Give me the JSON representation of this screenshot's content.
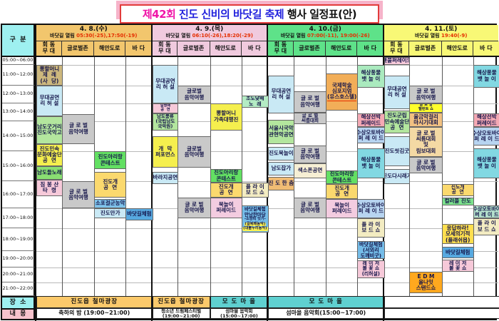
{
  "title": {
    "part1": "제42회",
    "part2": " 진도 신비의 바닷길 축제",
    "part3": " 행사 일정표(안)"
  },
  "labels": {
    "corner": "구  분",
    "place": "장  소",
    "content": "내  용",
    "tide": "바닷길 열림 "
  },
  "time_rows": [
    {
      "label": "05:00~06:00",
      "start": 5,
      "end": 6
    },
    {
      "label": "11:00~12:00",
      "start": 11,
      "end": 12
    },
    {
      "label": "12:00~13:00",
      "start": 12,
      "end": 13
    },
    {
      "label": "13:00~14:00",
      "start": 13,
      "end": 14
    },
    {
      "label": "14:00~15:00",
      "start": 14,
      "end": 15
    },
    {
      "label": "15:00~16:00",
      "start": 15,
      "end": 16
    },
    {
      "label": "16:00~17:00",
      "start": 16,
      "end": 17
    },
    {
      "label": "17:00~18:00",
      "start": 17,
      "end": 18
    },
    {
      "label": "18:00~19:00",
      "start": 18,
      "end": 19
    },
    {
      "label": "19:00~20:00",
      "start": 19,
      "end": 20
    },
    {
      "label": "20:00~21:00",
      "start": 20,
      "end": 21
    },
    {
      "label": "21:00~22:00",
      "start": 21,
      "end": 22
    }
  ],
  "columns": [
    [
      "회 동",
      "무 대"
    ],
    [
      "글로벌존"
    ],
    [
      "해안도로"
    ],
    [
      "바 다"
    ]
  ],
  "days": [
    {
      "date": "4. 8.(수)",
      "tide_times": "05:30(-25),17:50(-19)",
      "color": "#f2c66d",
      "events": [
        {
          "c": 0,
          "s": 11,
          "e": 12,
          "lines": [
            "뽕할머니",
            "제  례",
            "(사  당)"
          ],
          "bg": "#cdb87d"
        },
        {
          "c": 0,
          "s": 12,
          "e": 13.7,
          "lines": [
            "무대공연",
            "리 허 설"
          ],
          "bg": "#c9e9f5"
        },
        {
          "c": 0,
          "s": 13.7,
          "e": 14.75,
          "lines": [
            "남도굿거리",
            "(진도국악고)"
          ],
          "bg": "#b3e69e"
        },
        {
          "c": 0,
          "s": 14.75,
          "e": 15.5,
          "lines": [
            "진도민속",
            "문화예술단",
            "공  연"
          ],
          "bg": "#f5ef4e"
        },
        {
          "c": 0,
          "s": 15.5,
          "e": 15.95,
          "lines": [
            "남도들노래"
          ],
          "bg": "#8adf72"
        },
        {
          "c": 0,
          "s": 15.95,
          "e": 16.55,
          "lines": [
            "짐 봉 산",
            "타  령"
          ],
          "bg": "#f6c9d9"
        },
        {
          "c": 1,
          "s": 13.6,
          "e": 14.75,
          "lines": [
            "글 로 벌",
            "음악여행"
          ],
          "bg": "#c9c9c9"
        },
        {
          "c": 1,
          "s": 16,
          "e": 17,
          "lines": [
            "글 로 벌",
            "음악여행"
          ],
          "bg": "#c9c9c9"
        },
        {
          "c": 2,
          "s": 15,
          "e": 15.6,
          "lines": [
            "진도아리랑",
            "콘테스트"
          ],
          "bg": "#63e063"
        },
        {
          "c": 2,
          "s": 15.7,
          "e": 16.6,
          "lines": [
            "진도개",
            "공  연"
          ],
          "bg": "#fbd96e"
        },
        {
          "c": 2,
          "s": 16.65,
          "e": 17,
          "lines": [
            "소포걸군농악"
          ],
          "bg": "#7fc3ea"
        },
        {
          "c": 2,
          "s": 17,
          "e": 17.5,
          "lines": [
            "진도만가"
          ],
          "bg": "#c9e9f5"
        },
        {
          "c": 3,
          "s": 17,
          "e": 17.6,
          "lines": [
            "바닷길체험"
          ],
          "bg": "#57a9e0"
        }
      ]
    },
    {
      "date": "4. 9.(목)",
      "tide_times": "06:10(-26),18:20(-29)",
      "color": "#f0cade",
      "events": [
        {
          "c": 0,
          "s": 11,
          "e": 13,
          "lines": [
            "무대공연",
            "리 허 설"
          ],
          "bg": "#c9e9f5"
        },
        {
          "c": 0,
          "s": 13,
          "e": 13.55,
          "lines": [
            "걸쌍패",
            "공  연"
          ],
          "bg": "#f6c9d9"
        },
        {
          "c": 0,
          "s": 13.55,
          "e": 14.3,
          "lines": [
            "남도풍류",
            "(국립남도",
            "국악원)"
          ],
          "bg": "#b3e69e"
        },
        {
          "c": 0,
          "s": 14.5,
          "e": 15.55,
          "lines": [
            "개  막",
            "퍼포먼스"
          ],
          "bg": "#f5ef4e"
        },
        {
          "c": 0,
          "s": 15.7,
          "e": 16.1,
          "lines": [
            "바라지공연"
          ],
          "bg": "#c9e9f5"
        },
        {
          "c": 1,
          "s": 12,
          "e": 13,
          "lines": [
            "글로벌",
            "음악여행"
          ],
          "bg": "#c9c9c9"
        },
        {
          "c": 1,
          "s": 14.5,
          "e": 15.55,
          "lines": [
            "글로벌",
            "음악여행"
          ],
          "bg": "#c9c9c9"
        },
        {
          "c": 1,
          "s": 16.6,
          "e": 17.5,
          "lines": [
            "글 로 벌",
            "음악여행"
          ],
          "bg": "#c9c9c9"
        },
        {
          "c": 2,
          "s": 13,
          "e": 14.3,
          "lines": [
            "뽕할머니",
            "가족대행진"
          ],
          "bg": "#f5ef4e"
        },
        {
          "c": 2,
          "s": 15.6,
          "e": 16.05,
          "lines": [
            "진도아리랑",
            "콘테스트"
          ],
          "bg": "#63e063"
        },
        {
          "c": 2,
          "s": 16.05,
          "e": 16.6,
          "lines": [
            "진도개",
            "공  연"
          ],
          "bg": "#fbd96e"
        },
        {
          "c": 2,
          "s": 16.6,
          "e": 17.5,
          "lines": [
            "북놀이",
            "퍼레이드"
          ],
          "bg": "#f3cce0"
        },
        {
          "c": 3,
          "s": 12.55,
          "e": 13.25,
          "lines": [
            "조도닻배",
            "노  래"
          ],
          "bg": "#b4ecc4"
        },
        {
          "c": 3,
          "s": 16.05,
          "e": 16.6,
          "lines": [
            "플 라 이",
            "보 드 쇼"
          ],
          "bg": "#f3ecc2"
        },
        {
          "c": 3,
          "s": 16.9,
          "e": 18.2,
          "lines": [
            "바닷길체험",
            "만남한마당"
          ],
          "notes": [
            "-소망띠 잇기-"
          ],
          "tags": [
            "(걸북패농악)",
            "(대불누리농악)"
          ],
          "bg": "#74bce8"
        }
      ]
    },
    {
      "date": "4. 10.(금)",
      "tide_times": "07:00(-11), 19:00(-26)",
      "color": "#5ee289",
      "events": [
        {
          "c": 0,
          "s": 11.5,
          "e": 13.55,
          "lines": [
            "무대공연",
            "리 허 설"
          ],
          "bg": "#c9e9f5"
        },
        {
          "c": 0,
          "s": 13.9,
          "e": 14.75,
          "lines": [
            "서울시국악",
            "관현악공연"
          ],
          "bg": "#b3e69e"
        },
        {
          "c": 0,
          "s": 14.85,
          "e": 15.3,
          "lines": [
            "진도북놀이"
          ],
          "bg": "#c9e9f5"
        },
        {
          "c": 0,
          "s": 15.35,
          "e": 15.8,
          "lines": [
            "남도잡가"
          ],
          "bg": "#c9e9f5"
        },
        {
          "c": 0,
          "s": 15.85,
          "e": 16.35,
          "lines": [
            "진 도 한 춤"
          ],
          "bg": "#f0bc74"
        },
        {
          "c": 1,
          "s": 12.3,
          "e": 13.5,
          "lines": [
            "글 로 벌",
            "음악여행"
          ],
          "bg": "#c9c9c9"
        },
        {
          "c": 1,
          "s": 13.5,
          "e": 14.1,
          "lines": [
            "글 로 벌",
            "씨름대회"
          ],
          "bg": "#c9c9c9"
        },
        {
          "c": 1,
          "s": 14.8,
          "e": 15.4,
          "lines": [
            "글 로 벌",
            "음악여행"
          ],
          "bg": "#c9c9c9"
        },
        {
          "c": 1,
          "s": 15.4,
          "e": 15.9,
          "lines": [
            "색소폰공연"
          ],
          "bg": "#f6efd4"
        },
        {
          "c": 1,
          "s": 16.6,
          "e": 17.5,
          "lines": [
            "글 로 벌",
            "음악여행"
          ],
          "bg": "#c9c9c9"
        },
        {
          "c": 2,
          "s": 11.4,
          "e": 13.4,
          "lines": [
            "국제학술",
            "심포지엄"
          ],
          "ul": "(유스호스텔)",
          "bg": "#f2ae58"
        },
        {
          "c": 2,
          "s": 15.65,
          "e": 16.1,
          "lines": [
            "진도아리랑",
            "콘테스트"
          ],
          "bg": "#63e063"
        },
        {
          "c": 2,
          "s": 16.1,
          "e": 16.65,
          "lines": [
            "진도개",
            "공  연"
          ],
          "bg": "#fbd96e"
        },
        {
          "c": 2,
          "s": 16.65,
          "e": 17.5,
          "lines": [
            "북놀이",
            "퍼레이드"
          ],
          "bg": "#f3cce0"
        },
        {
          "c": 3,
          "s": 11,
          "e": 12.1,
          "lines": [
            "해상풍물",
            "뱃 놀 이"
          ],
          "bg": "#aaeabe"
        },
        {
          "c": 3,
          "s": 13.55,
          "e": 14.2,
          "lines": [
            "해상선박",
            "퍼레이드"
          ],
          "bg": "#f4a9b4"
        },
        {
          "c": 3,
          "s": 14.2,
          "e": 14.75,
          "lines": [
            "수상오토바이",
            "퍼 레 이 드"
          ],
          "bg": "#b7d4f0"
        },
        {
          "c": 3,
          "s": 14.9,
          "e": 15.9,
          "lines": [
            "해상풍물",
            "뱃 놀 이"
          ],
          "bg": "#82d8e2"
        },
        {
          "c": 3,
          "s": 16.65,
          "e": 17.5,
          "lines": [
            "수상오토바이",
            "퍼 레 이 드"
          ],
          "bg": "#b7d4f0"
        },
        {
          "c": 3,
          "s": 17.5,
          "e": 18.4,
          "lines": [
            "플 라 이",
            "보 드 쇼"
          ],
          "bg": "#f3ecc2"
        },
        {
          "c": 3,
          "s": 18.55,
          "e": 19.5,
          "lines": [
            "바닷길체험",
            "(서외리",
            "도깨비굿)"
          ],
          "bg": "#74bce8"
        },
        {
          "c": 3,
          "s": 19.55,
          "e": 20.7,
          "lines": [
            "레 이 저",
            "불 꽃 쇼",
            "(리허설)"
          ],
          "bg": "#f6c9d9"
        }
      ]
    },
    {
      "date": "4. 11.(토)",
      "tide_times": "19:40(-9)",
      "color": "#f8f876",
      "events": [
        {
          "c": 0,
          "s": 5,
          "e": 6,
          "lines": [
            "횃불퍼레이드"
          ],
          "bg": "#f6c9d9"
        },
        {
          "c": 0,
          "s": 11.5,
          "e": 13.3,
          "lines": [
            "무대공연",
            "리 허 설"
          ],
          "bg": "#c9e9f5"
        },
        {
          "c": 0,
          "s": 13.4,
          "e": 14.4,
          "lines": [
            "진도군립",
            "민속예술단",
            "공  연"
          ],
          "bg": "#b3e69e"
        },
        {
          "c": 0,
          "s": 14.5,
          "e": 15.5,
          "lines": [
            "진도씻김굿"
          ],
          "bg": "#c9e9f5"
        },
        {
          "c": 0,
          "s": 15.6,
          "e": 16.1,
          "lines": [
            "진도다시래기"
          ],
          "bg": "#c9e9f5"
        },
        {
          "c": 1,
          "s": 12,
          "e": 13,
          "lines": [
            "글 로 벌",
            "음악여행"
          ],
          "bg": "#c9c9c9"
        },
        {
          "c": 1,
          "s": 13,
          "e": 13.5,
          "lines": [
            "글 로 벌",
            "탤런트 쇼"
          ],
          "bg": "#ffff2a"
        },
        {
          "c": 1,
          "s": 13.5,
          "e": 14.2,
          "lines": [
            "울금막걸리",
            "마시기대회"
          ],
          "bg": "#f2c182"
        },
        {
          "c": 1,
          "s": 14.2,
          "e": 15.2,
          "lines": [
            "글 로 벌",
            "씨름대회",
            "및",
            "림보대회"
          ],
          "bg": "#f4d9a4"
        },
        {
          "c": 1,
          "s": 15.2,
          "e": 15.75,
          "lines": [
            "글 로 벌",
            "음악여행"
          ],
          "bg": "#c9c9c9"
        },
        {
          "c": 1,
          "s": 20.3,
          "e": 21.8,
          "lines": [
            "E D M",
            "올나잇",
            "스탠드쇼"
          ],
          "bg": "#ffa81e"
        },
        {
          "c": 2,
          "s": 16.1,
          "e": 16.55,
          "lines": [
            "진도개",
            "공  연"
          ],
          "bg": "#fbd96e"
        },
        {
          "c": 2,
          "s": 16.6,
          "e": 16.9,
          "lines": [
            "컬러풀 진도"
          ],
          "bg": "#7ce28c"
        },
        {
          "c": 2,
          "s": 17.8,
          "e": 18.7,
          "lines": [
            "응답하라!",
            "모세의기적",
            "(플래쉬몹)"
          ],
          "bg": "#ffdf4e"
        },
        {
          "c": 2,
          "s": 18.8,
          "e": 19.45,
          "lines": [
            "바닷길체험"
          ],
          "bg": "#57a9e0"
        },
        {
          "c": 2,
          "s": 19.5,
          "e": 20.3,
          "lines": [
            "레 이 저",
            "불 꽃 쇼"
          ],
          "bg": "#f6c9d9"
        },
        {
          "c": 3,
          "s": 11,
          "e": 12.1,
          "lines": [
            "해상풍물",
            "뱃 놀 이"
          ],
          "bg": "#82d8e2"
        },
        {
          "c": 3,
          "s": 13.55,
          "e": 14.2,
          "lines": [
            "해상선박",
            "퍼레이드"
          ],
          "bg": "#f4a9b4"
        },
        {
          "c": 3,
          "s": 14.2,
          "e": 14.8,
          "lines": [
            "수상오토바이",
            "퍼 레 이 드"
          ],
          "bg": "#b7d4f0"
        },
        {
          "c": 3,
          "s": 14.9,
          "e": 15.9,
          "lines": [
            "해상풍물",
            "뱃 놀 이"
          ],
          "bg": "#82d8e2"
        },
        {
          "c": 3,
          "s": 16.9,
          "e": 17.5,
          "lines": [
            "수상오토바이",
            "퍼 레 이 드"
          ],
          "bg": "#b3e0cc"
        },
        {
          "c": 3,
          "s": 17.5,
          "e": 18.3,
          "lines": [
            "플 라 이",
            "보 드 쇼"
          ],
          "bg": "#f3ecc2"
        }
      ]
    }
  ],
  "place_cells": [
    {
      "day": 0,
      "c0": 0,
      "c1": 3,
      "text": "진도읍 철마광장",
      "bg": "#fbc96b"
    },
    {
      "day": 1,
      "c0": 0,
      "c1": 1,
      "text": "진도읍 철마광장",
      "bg": "#fbc96b"
    },
    {
      "day": 1,
      "c0": 2,
      "c1": 3,
      "text": "모 도 마 을",
      "bg": "#5fd0d0"
    },
    {
      "day": 2,
      "c0": 0,
      "c1": 3,
      "text": "모 도 마 을",
      "bg": "#5fd0d0"
    },
    {
      "day": 3,
      "c0": 0,
      "c1": 3,
      "text": "",
      "bg": "#ffffff"
    }
  ],
  "content_cells": [
    {
      "day": 0,
      "c0": 0,
      "c1": 3,
      "lines": [
        "축하의 밤 (19:00~21:00)"
      ]
    },
    {
      "day": 1,
      "c0": 0,
      "c1": 1,
      "lines": [
        "청소년 드림페스티벌",
        "(19:00~21:00)"
      ]
    },
    {
      "day": 1,
      "c0": 2,
      "c1": 3,
      "lines": [
        "섬마을 음악회",
        "(15:00~17:00)"
      ]
    },
    {
      "day": 2,
      "c0": 0,
      "c1": 3,
      "lines": [
        "섬마을 음악회(15:00~17:00)"
      ]
    },
    {
      "day": 3,
      "c0": 0,
      "c1": 3,
      "lines": []
    }
  ]
}
